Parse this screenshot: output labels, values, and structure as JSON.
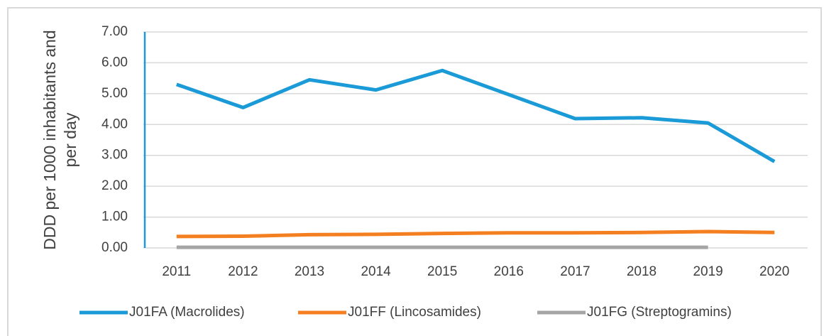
{
  "chart_data": {
    "type": "line",
    "y_label": "DDD per 1000 inhabitants and per day",
    "categories": [
      "2011",
      "2012",
      "2013",
      "2014",
      "2015",
      "2016",
      "2017",
      "2018",
      "2019",
      "2020"
    ],
    "series": [
      {
        "name": "J01FA (Macrolides)",
        "color": "#1a9ad6",
        "values": [
          5.3,
          4.55,
          5.45,
          5.12,
          5.75,
          4.97,
          4.19,
          4.22,
          4.05,
          2.8
        ]
      },
      {
        "name": "J01FF (Lincosamides)",
        "color": "#f47f20",
        "values": [
          0.37,
          0.38,
          0.43,
          0.44,
          0.47,
          0.49,
          0.49,
          0.5,
          0.53,
          0.5
        ]
      },
      {
        "name": "J01FG (Streptogramins)",
        "color": "#a5a5a5",
        "values": [
          0.02,
          0.02,
          0.02,
          0.02,
          0.02,
          0.02,
          0.02,
          0.02,
          0.02,
          null
        ]
      }
    ],
    "ylim": [
      0,
      7
    ],
    "yticks": [
      {
        "value": 0,
        "label": "0.00"
      },
      {
        "value": 1,
        "label": "1.00"
      },
      {
        "value": 2,
        "label": "2.00"
      },
      {
        "value": 3,
        "label": "3.00"
      },
      {
        "value": 4,
        "label": "4.00"
      },
      {
        "value": 5,
        "label": "5.00"
      },
      {
        "value": 6,
        "label": "6.00"
      },
      {
        "value": 7,
        "label": "7.00"
      }
    ],
    "grid": true,
    "legend": "bottom"
  }
}
